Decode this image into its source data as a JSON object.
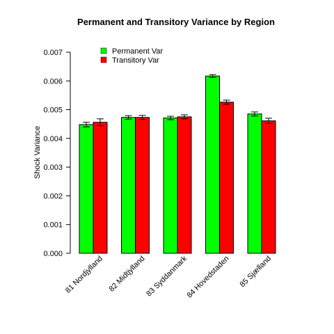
{
  "chart_data": {
    "type": "bar",
    "title": "Permanent and Transitory Variance by  Region",
    "xlabel": "",
    "ylabel": "Shock Variance",
    "ylim": [
      0,
      0.007
    ],
    "yticks": [
      "0.000",
      "0.001",
      "0.002",
      "0.003",
      "0.004",
      "0.005",
      "0.006",
      "0.007"
    ],
    "yticks_values": [
      0,
      0.001,
      0.002,
      0.003,
      0.004,
      0.005,
      0.006,
      0.007
    ],
    "categories": [
      "81 Nordjylland",
      "82 Midtjylland",
      "83 Syddanmark",
      "84 Hovedstaden",
      "85 Sjælland"
    ],
    "series": [
      {
        "name": "Permanent Var",
        "color": "#00ff00",
        "values": [
          0.00448,
          0.00473,
          0.00471,
          0.00617,
          0.00485
        ],
        "errors": [
          8e-05,
          6e-05,
          6e-05,
          5e-05,
          7e-05
        ]
      },
      {
        "name": "Transitory Var",
        "color": "#ff0000",
        "values": [
          0.00456,
          0.00473,
          0.00475,
          0.00526,
          0.00461
        ],
        "errors": [
          0.00012,
          7e-05,
          7e-05,
          7e-05,
          9e-05
        ]
      }
    ],
    "legend": "top-left",
    "grid": false
  }
}
